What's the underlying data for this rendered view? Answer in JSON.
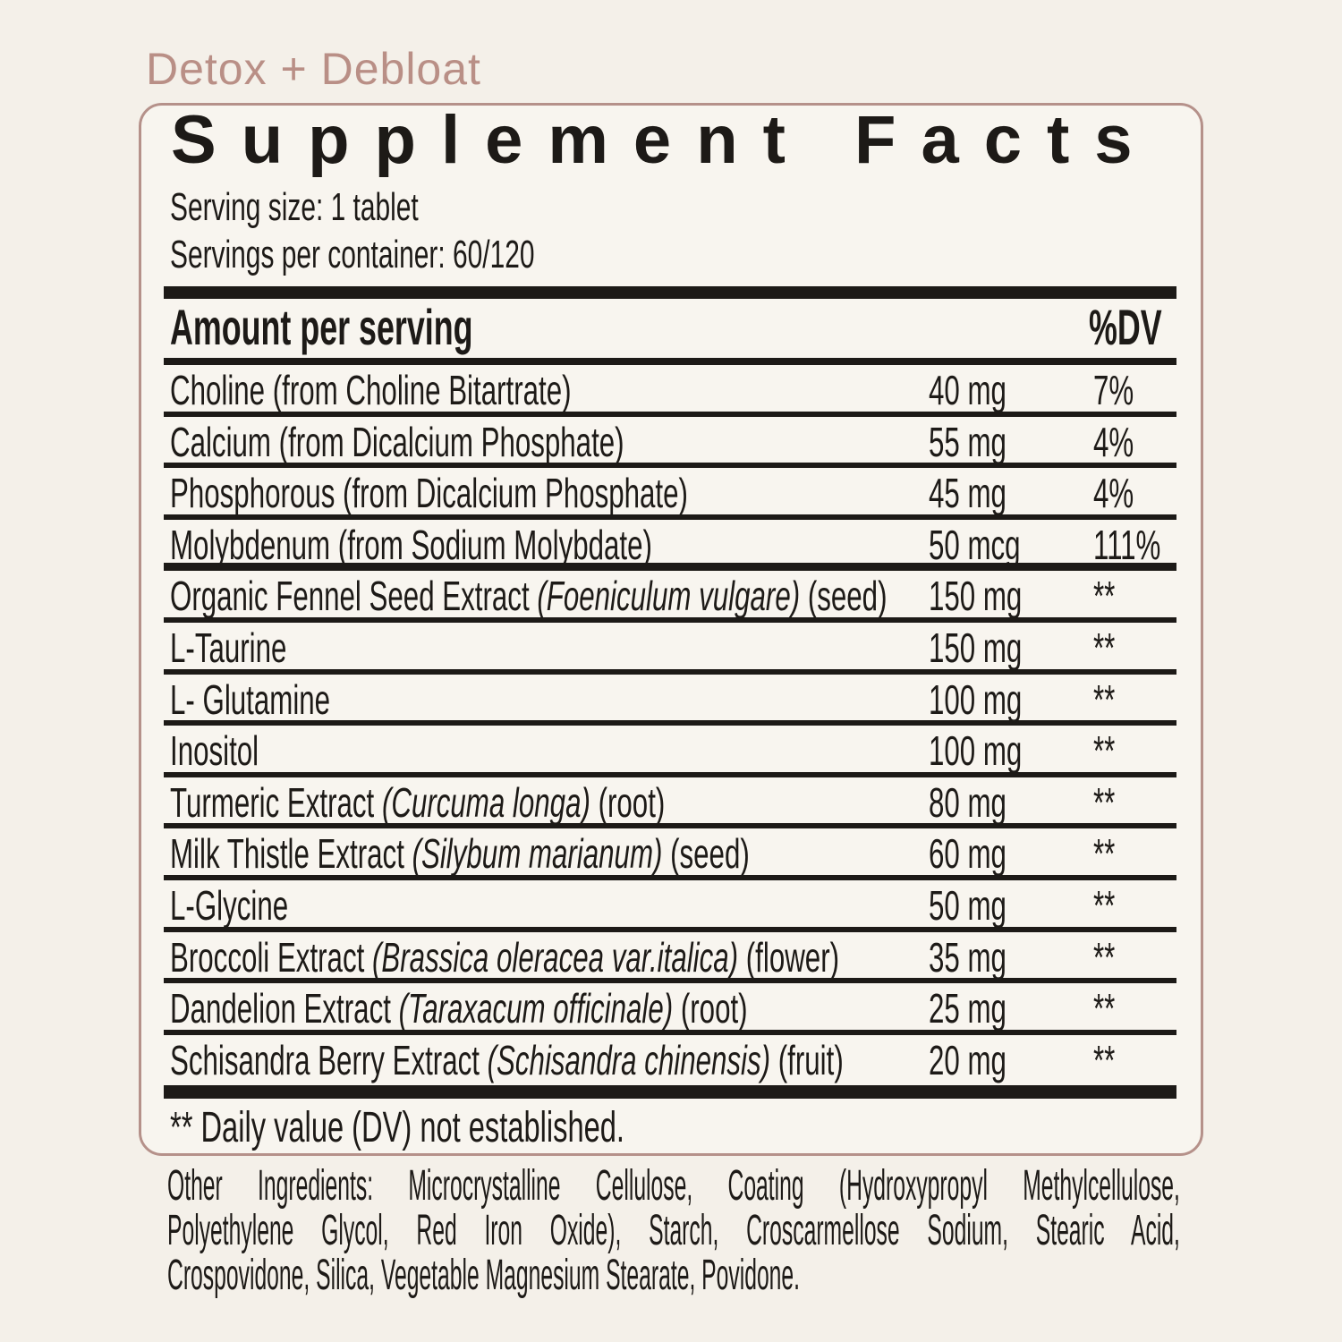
{
  "eyebrow": "Detox + Debloat",
  "colors": {
    "accent": "#b5918a",
    "eyebrow": "#b98f86",
    "ink": "#1d1a17",
    "page_bg": "#f4f0e9",
    "panel_bg": "#f8f5ef"
  },
  "panel": {
    "title": "Supplement Facts",
    "serving_size": "Serving size: 1 tablet",
    "servings_per_container": "Servings per container: 60/120",
    "columns": {
      "amount": "Amount per serving",
      "dv": "%DV"
    },
    "rows": [
      {
        "prefix": "Choline (from Choline Bitartrate)",
        "latin": "",
        "suffix": "",
        "amount": "40 mg",
        "dv": "7%"
      },
      {
        "prefix": "Calcium (from Dicalcium Phosphate)",
        "latin": "",
        "suffix": "",
        "amount": "55 mg",
        "dv": "4%"
      },
      {
        "prefix": "Phosphorous (from Dicalcium Phosphate)",
        "latin": "",
        "suffix": "",
        "amount": "45 mg",
        "dv": "4%"
      },
      {
        "prefix": "Molybdenum (from Sodium Molybdate)",
        "latin": "",
        "suffix": "",
        "amount": "50 mcg",
        "dv": "111%",
        "divider": "thick"
      },
      {
        "prefix": "Organic Fennel Seed Extract ",
        "latin": "(Foeniculum vulgare)",
        "suffix": " (seed)",
        "amount": "150 mg",
        "dv": "**"
      },
      {
        "prefix": "L-Taurine",
        "latin": "",
        "suffix": "",
        "amount": "150 mg",
        "dv": "**"
      },
      {
        "prefix": "L- Glutamine",
        "latin": "",
        "suffix": "",
        "amount": "100 mg",
        "dv": "**"
      },
      {
        "prefix": "Inositol",
        "latin": "",
        "suffix": "",
        "amount": "100 mg",
        "dv": "**"
      },
      {
        "prefix": "Turmeric Extract ",
        "latin": "(Curcuma longa)",
        "suffix": " (root)",
        "amount": "80 mg",
        "dv": "**"
      },
      {
        "prefix": "Milk Thistle Extract ",
        "latin": "(Silybum marianum)",
        "suffix": " (seed)",
        "amount": "60 mg",
        "dv": "**"
      },
      {
        "prefix": "L-Glycine",
        "latin": "",
        "suffix": "",
        "amount": "50 mg",
        "dv": "**"
      },
      {
        "prefix": "Broccoli Extract ",
        "latin": "(Brassica oleracea var.italica)",
        "suffix": " (flower)",
        "amount": "35 mg",
        "dv": "**"
      },
      {
        "prefix": "Dandelion Extract ",
        "latin": "(Taraxacum officinale)",
        "suffix": " (root)",
        "amount": "25 mg",
        "dv": "**"
      },
      {
        "prefix": "Schisandra Berry Extract ",
        "latin": "(Schisandra chinensis)",
        "suffix": " (fruit)",
        "amount": "20 mg",
        "dv": "**"
      }
    ],
    "footnote": "** Daily value (DV) not established."
  },
  "other_ingredients": {
    "lines": [
      "Other Ingredients: Microcrystalline Cellulose, Coating (Hydroxypropyl Methylcellulose,",
      "Polyethylene Glycol, Red Iron Oxide), Starch, Croscarmellose Sodium, Stearic Acid,",
      "Crospovidone, Silica, Vegetable Magnesium Stearate, Povidone."
    ]
  }
}
